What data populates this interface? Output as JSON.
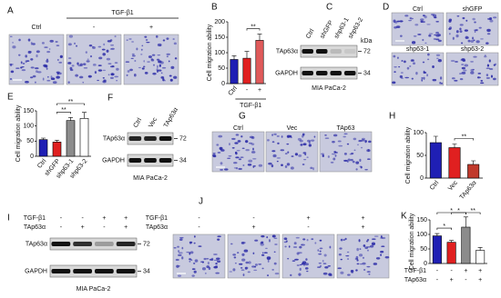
{
  "chart_data": [
    {
      "type": "bar",
      "label": "B",
      "ylabel": "Cell migration ability",
      "xlabel": "TGF-β1",
      "categories": [
        "Ctrl",
        "-",
        "+"
      ],
      "values": [
        78,
        82,
        140
      ],
      "errors": [
        12,
        22,
        20
      ],
      "colors": [
        "#1f1fb4",
        "#e02020",
        "#e05a5a"
      ],
      "ylim": [
        0,
        200
      ],
      "yticks": [
        0,
        50,
        100,
        150,
        200
      ],
      "annotations": [
        {
          "text": "**",
          "from": 1,
          "to": 2
        }
      ]
    },
    {
      "type": "bar",
      "label": "E",
      "ylabel": "Cell migration ability",
      "categories": [
        "Ctrl",
        "shGFP",
        "shp63-1",
        "shp63-2"
      ],
      "values": [
        55,
        47,
        118,
        125
      ],
      "errors": [
        5,
        6,
        10,
        20
      ],
      "colors": [
        "#1f1fb4",
        "#e02020",
        "#8c8c8c",
        "#ffffff"
      ],
      "ylim": [
        0,
        150
      ],
      "yticks": [
        0,
        50,
        100,
        150
      ],
      "annotations": [
        {
          "text": "**",
          "from": 1,
          "to": 2
        },
        {
          "text": "**",
          "from": 1,
          "to": 3
        }
      ]
    },
    {
      "type": "bar",
      "label": "H",
      "ylabel": "Cell migration ability",
      "categories": [
        "Ctrl",
        "Vec",
        "TAp63α"
      ],
      "values": [
        78,
        67,
        30
      ],
      "errors": [
        14,
        8,
        8
      ],
      "colors": [
        "#1f1fb4",
        "#e02020",
        "#c0392b"
      ],
      "ylim": [
        0,
        100
      ],
      "yticks": [
        0,
        50,
        100
      ],
      "annotations": [
        {
          "text": "**",
          "from": 1,
          "to": 2
        }
      ]
    },
    {
      "type": "bar",
      "label": "K",
      "ylabel": "Cell migration ability",
      "rows": [
        {
          "name": "TGF-β1",
          "signs": [
            "-",
            "-",
            "+",
            "+"
          ]
        },
        {
          "name": "TAp63α",
          "signs": [
            "-",
            "+",
            "-",
            "+"
          ]
        }
      ],
      "values": [
        95,
        73,
        125,
        45
      ],
      "errors": [
        8,
        6,
        35,
        10
      ],
      "colors": [
        "#1f1fb4",
        "#e02020",
        "#8c8c8c",
        "#ffffff"
      ],
      "ylim": [
        0,
        150
      ],
      "yticks": [
        0,
        50,
        100,
        150
      ],
      "annotations": [
        {
          "text": "*",
          "from": 0,
          "to": 1
        },
        {
          "text": "*",
          "from": 1,
          "to": 2
        },
        {
          "text": "*",
          "from": 0,
          "to": 2
        },
        {
          "text": "**",
          "from": 2,
          "to": 3
        }
      ]
    }
  ],
  "blots": [
    {
      "label": "C",
      "columns": [
        "Ctrl",
        "shGFP",
        "shp63-1",
        "shp63-2"
      ],
      "kda": "kDa",
      "rows": [
        {
          "name": "TAp63α",
          "marker": "72"
        },
        {
          "name": "GAPDH",
          "marker": "34"
        }
      ],
      "cell_line": "MIA PaCa-2"
    },
    {
      "label": "F",
      "columns": [
        "Ctrl",
        "Vec",
        "TAp63α"
      ],
      "rows": [
        {
          "name": "TAp63α",
          "marker": "72"
        },
        {
          "name": "GAPDH",
          "marker": "34"
        }
      ],
      "cell_line": "MIA PaCa-2"
    },
    {
      "label": "I",
      "conditions": [
        {
          "name": "TGF-β1",
          "signs": [
            "-",
            "-",
            "+",
            "+"
          ]
        },
        {
          "name": "TAp63α",
          "signs": [
            "-",
            "+",
            "-",
            "+"
          ]
        }
      ],
      "rows": [
        {
          "name": "TAp63α",
          "marker": "72"
        },
        {
          "name": "GAPDH",
          "marker": "34"
        }
      ],
      "cell_line": "MIA PaCa-2"
    }
  ],
  "micrographs": [
    {
      "label": "A",
      "group": "TGF-β1",
      "captions": [
        "Ctrl",
        "-",
        "+"
      ]
    },
    {
      "label": "D",
      "captions": [
        "Ctrl",
        "shGFP",
        "shp63-1",
        "shp63-2"
      ]
    },
    {
      "label": "G",
      "captions": [
        "Ctrl",
        "Vec",
        "TAp63"
      ]
    },
    {
      "label": "J",
      "conditions": [
        {
          "name": "TGF-β1",
          "signs": [
            "-",
            "-",
            "+",
            "+"
          ]
        },
        {
          "name": "TAp63α",
          "signs": [
            "-",
            "+",
            "-",
            "+"
          ]
        }
      ]
    }
  ]
}
